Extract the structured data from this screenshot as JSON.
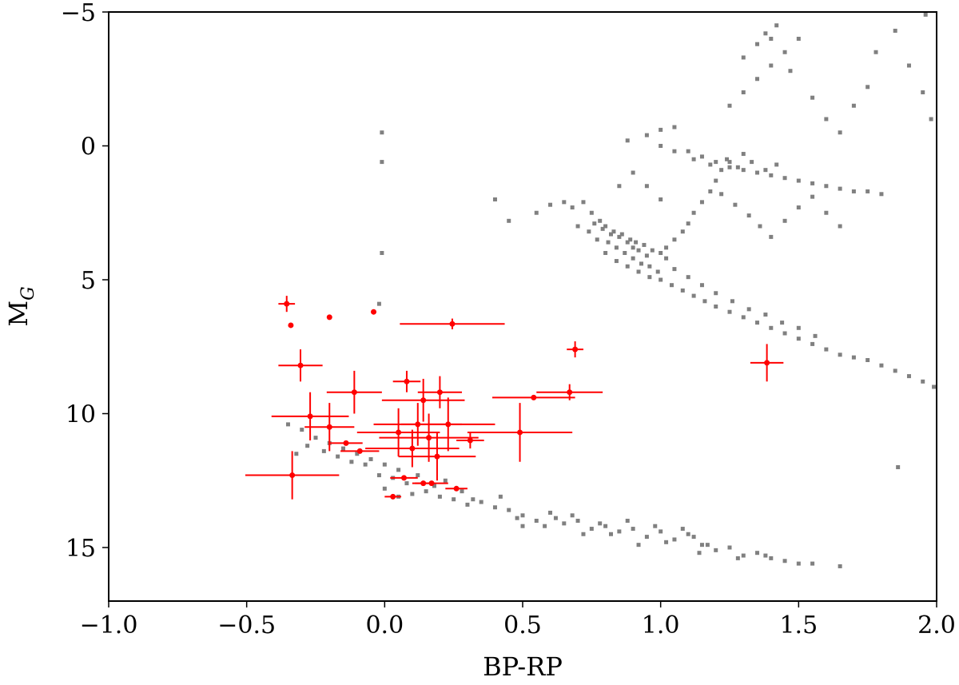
{
  "chart_data": {
    "type": "scatter",
    "title": "",
    "xlabel": "BP-RP",
    "ylabel_main": "M",
    "ylabel_sub": "G",
    "xlim": [
      -1.0,
      2.0
    ],
    "ylim": [
      17.0,
      -5.0
    ],
    "y_inverted": true,
    "grid": false,
    "legend": "none",
    "x_ticks": [
      -1.0,
      -0.5,
      0.0,
      0.5,
      1.0,
      1.5,
      2.0
    ],
    "x_tick_labels": [
      "−1.0",
      "−0.5",
      "0.0",
      "0.5",
      "1.0",
      "1.5",
      "2.0"
    ],
    "y_ticks": [
      -5,
      0,
      5,
      10,
      15
    ],
    "y_tick_labels": [
      "−5",
      "0",
      "5",
      "10",
      "15"
    ],
    "series": [
      {
        "color": "#808080",
        "marker": "small-square",
        "description_points": "field stars (main sequence and giant branch)",
        "points": [
          [
            0.72,
            2.1
          ],
          [
            0.75,
            2.5
          ],
          [
            0.78,
            2.8
          ],
          [
            0.8,
            3.0
          ],
          [
            0.82,
            3.3
          ],
          [
            0.85,
            3.4
          ],
          [
            0.88,
            3.6
          ],
          [
            0.9,
            3.8
          ],
          [
            0.92,
            3.9
          ],
          [
            0.95,
            4.1
          ],
          [
            0.7,
            3.0
          ],
          [
            0.74,
            3.2
          ],
          [
            0.77,
            3.5
          ],
          [
            0.81,
            3.6
          ],
          [
            0.84,
            3.8
          ],
          [
            0.87,
            4.0
          ],
          [
            0.9,
            4.2
          ],
          [
            0.93,
            4.4
          ],
          [
            0.96,
            4.5
          ],
          [
            0.99,
            4.7
          ],
          [
            0.76,
            2.9
          ],
          [
            0.79,
            3.1
          ],
          [
            0.83,
            3.2
          ],
          [
            0.86,
            3.3
          ],
          [
            0.89,
            3.5
          ],
          [
            0.91,
            3.6
          ],
          [
            0.94,
            3.7
          ],
          [
            0.97,
            3.9
          ],
          [
            1.0,
            4.0
          ],
          [
            1.02,
            4.2
          ],
          [
            0.8,
            4.0
          ],
          [
            0.84,
            4.3
          ],
          [
            0.88,
            4.5
          ],
          [
            0.92,
            4.7
          ],
          [
            0.96,
            4.9
          ],
          [
            1.0,
            5.0
          ],
          [
            1.04,
            5.2
          ],
          [
            1.08,
            5.4
          ],
          [
            1.12,
            5.6
          ],
          [
            1.16,
            5.8
          ],
          [
            1.2,
            6.0
          ],
          [
            1.25,
            6.2
          ],
          [
            1.3,
            6.4
          ],
          [
            1.35,
            6.6
          ],
          [
            1.4,
            6.8
          ],
          [
            1.45,
            7.0
          ],
          [
            1.5,
            7.2
          ],
          [
            1.55,
            7.4
          ],
          [
            1.6,
            7.6
          ],
          [
            1.65,
            7.8
          ],
          [
            1.7,
            7.9
          ],
          [
            1.75,
            8.0
          ],
          [
            1.8,
            8.2
          ],
          [
            1.85,
            8.4
          ],
          [
            1.9,
            8.6
          ],
          [
            1.95,
            8.8
          ],
          [
            1.99,
            9.0
          ],
          [
            1.05,
            4.6
          ],
          [
            1.1,
            4.9
          ],
          [
            1.15,
            5.2
          ],
          [
            1.2,
            5.5
          ],
          [
            1.26,
            5.8
          ],
          [
            1.32,
            6.1
          ],
          [
            1.38,
            6.3
          ],
          [
            1.44,
            6.6
          ],
          [
            1.5,
            6.8
          ],
          [
            1.56,
            7.1
          ],
          [
            1.02,
            3.8
          ],
          [
            1.05,
            3.5
          ],
          [
            1.08,
            3.2
          ],
          [
            1.1,
            2.9
          ],
          [
            1.12,
            2.5
          ],
          [
            1.15,
            2.1
          ],
          [
            1.18,
            1.7
          ],
          [
            1.2,
            1.3
          ],
          [
            1.22,
            0.9
          ],
          [
            1.25,
            0.6
          ],
          [
            1.1,
            0.2
          ],
          [
            1.15,
            0.4
          ],
          [
            1.2,
            0.6
          ],
          [
            1.25,
            0.8
          ],
          [
            1.3,
            0.9
          ],
          [
            1.35,
            1.0
          ],
          [
            1.4,
            1.1
          ],
          [
            1.45,
            1.2
          ],
          [
            1.5,
            1.3
          ],
          [
            1.55,
            1.4
          ],
          [
            1.6,
            1.5
          ],
          [
            1.65,
            1.6
          ],
          [
            1.7,
            1.7
          ],
          [
            1.75,
            1.7
          ],
          [
            1.8,
            1.8
          ],
          [
            1.0,
            0.0
          ],
          [
            1.05,
            0.2
          ],
          [
            1.12,
            0.5
          ],
          [
            1.18,
            0.7
          ],
          [
            1.24,
            0.5
          ],
          [
            1.3,
            0.3
          ],
          [
            1.28,
            0.8
          ],
          [
            1.33,
            0.6
          ],
          [
            1.38,
            0.9
          ],
          [
            1.42,
            0.7
          ],
          [
            1.22,
            1.8
          ],
          [
            1.27,
            2.2
          ],
          [
            1.32,
            2.6
          ],
          [
            1.36,
            3.0
          ],
          [
            1.4,
            3.4
          ],
          [
            1.45,
            2.8
          ],
          [
            1.5,
            2.3
          ],
          [
            1.55,
            1.9
          ],
          [
            1.6,
            2.5
          ],
          [
            1.65,
            3.0
          ],
          [
            1.25,
            -1.5
          ],
          [
            1.3,
            -2.0
          ],
          [
            1.35,
            -2.5
          ],
          [
            1.4,
            -3.0
          ],
          [
            1.45,
            -3.5
          ],
          [
            1.5,
            -4.0
          ],
          [
            1.47,
            -2.8
          ],
          [
            1.55,
            -1.8
          ],
          [
            1.6,
            -1.0
          ],
          [
            1.65,
            -0.5
          ],
          [
            1.7,
            -1.5
          ],
          [
            1.75,
            -2.2
          ],
          [
            1.78,
            -3.5
          ],
          [
            1.85,
            -4.3
          ],
          [
            1.9,
            -3.0
          ],
          [
            1.95,
            -2.0
          ],
          [
            1.98,
            -1.0
          ],
          [
            1.96,
            -4.9
          ],
          [
            1.35,
            -3.8
          ],
          [
            1.38,
            -4.2
          ],
          [
            1.42,
            -4.5
          ],
          [
            1.4,
            -4.0
          ],
          [
            1.3,
            -3.3
          ],
          [
            0.88,
            -0.2
          ],
          [
            0.95,
            -0.4
          ],
          [
            1.0,
            -0.6
          ],
          [
            1.05,
            -0.7
          ],
          [
            0.9,
            1.0
          ],
          [
            0.95,
            1.5
          ],
          [
            1.0,
            2.0
          ],
          [
            0.85,
            1.5
          ],
          [
            0.6,
            2.2
          ],
          [
            0.65,
            2.1
          ],
          [
            0.68,
            2.3
          ],
          [
            0.55,
            2.5
          ],
          [
            0.45,
            2.8
          ],
          [
            0.4,
            2.0
          ],
          [
            -0.01,
            -0.5
          ],
          [
            -0.01,
            0.6
          ],
          [
            -0.01,
            4.0
          ],
          [
            -0.02,
            5.9
          ],
          [
            -0.35,
            10.4
          ],
          [
            -0.3,
            10.6
          ],
          [
            -0.25,
            10.9
          ],
          [
            -0.2,
            11.1
          ],
          [
            -0.15,
            11.3
          ],
          [
            -0.1,
            11.5
          ],
          [
            -0.05,
            11.7
          ],
          [
            0.0,
            11.9
          ],
          [
            0.05,
            12.1
          ],
          [
            -0.32,
            11.5
          ],
          [
            -0.28,
            11.2
          ],
          [
            -0.22,
            11.4
          ],
          [
            -0.17,
            11.6
          ],
          [
            -0.12,
            11.8
          ],
          [
            -0.07,
            11.9
          ],
          [
            -0.02,
            12.3
          ],
          [
            0.03,
            12.4
          ],
          [
            0.08,
            12.6
          ],
          [
            0.1,
            13.0
          ],
          [
            0.15,
            12.9
          ],
          [
            0.2,
            13.1
          ],
          [
            0.25,
            13.2
          ],
          [
            0.3,
            13.4
          ],
          [
            0.35,
            13.3
          ],
          [
            0.4,
            13.5
          ],
          [
            0.45,
            13.6
          ],
          [
            0.5,
            13.8
          ],
          [
            0.55,
            14.0
          ],
          [
            0.6,
            13.7
          ],
          [
            0.65,
            14.1
          ],
          [
            0.7,
            14.0
          ],
          [
            0.75,
            14.3
          ],
          [
            0.8,
            14.2
          ],
          [
            0.85,
            14.4
          ],
          [
            0.9,
            14.3
          ],
          [
            0.95,
            14.6
          ],
          [
            1.0,
            14.4
          ],
          [
            1.05,
            14.7
          ],
          [
            1.1,
            14.5
          ],
          [
            1.15,
            14.9
          ],
          [
            1.2,
            15.1
          ],
          [
            1.25,
            15.0
          ],
          [
            1.3,
            15.3
          ],
          [
            1.35,
            15.2
          ],
          [
            1.4,
            15.4
          ],
          [
            1.45,
            15.5
          ],
          [
            1.5,
            15.6
          ],
          [
            1.55,
            15.6
          ],
          [
            0.0,
            12.8
          ],
          [
            0.05,
            13.1
          ],
          [
            0.12,
            12.3
          ],
          [
            0.18,
            12.7
          ],
          [
            0.22,
            12.5
          ],
          [
            0.28,
            12.9
          ],
          [
            0.32,
            13.2
          ],
          [
            0.42,
            13.1
          ],
          [
            0.48,
            13.9
          ],
          [
            0.58,
            14.2
          ],
          [
            0.62,
            13.9
          ],
          [
            0.68,
            13.8
          ],
          [
            0.72,
            14.5
          ],
          [
            0.78,
            14.1
          ],
          [
            0.82,
            14.5
          ],
          [
            0.88,
            14.0
          ],
          [
            0.92,
            14.9
          ],
          [
            0.98,
            14.2
          ],
          [
            1.02,
            14.8
          ],
          [
            1.08,
            14.3
          ],
          [
            1.12,
            14.6
          ],
          [
            1.14,
            15.2
          ],
          [
            1.17,
            14.9
          ],
          [
            1.28,
            15.4
          ],
          [
            1.38,
            15.3
          ],
          [
            1.65,
            15.7
          ],
          [
            1.86,
            12.0
          ],
          [
            0.5,
            14.2
          ]
        ]
      },
      {
        "color": "#ff0000",
        "marker": "dot-with-errorbars",
        "points": [
          {
            "x": -0.355,
            "y": 5.9,
            "xerr": 0.03,
            "yerr": 0.3
          },
          {
            "x": -0.34,
            "y": 6.7,
            "xerr": 0.0,
            "yerr": 0.0
          },
          {
            "x": -0.2,
            "y": 6.4,
            "xerr": 0.0,
            "yerr": 0.0
          },
          {
            "x": -0.04,
            "y": 6.2,
            "xerr": 0.0,
            "yerr": 0.0
          },
          {
            "x": 0.245,
            "y": 6.65,
            "xerr": 0.19,
            "yerr": 0.2
          },
          {
            "x": 0.69,
            "y": 7.6,
            "xerr": 0.03,
            "yerr": 0.3
          },
          {
            "x": -0.305,
            "y": 8.2,
            "xerr": 0.08,
            "yerr": 0.6
          },
          {
            "x": 1.385,
            "y": 8.1,
            "xerr": 0.06,
            "yerr": 0.7
          },
          {
            "x": 0.08,
            "y": 8.8,
            "xerr": 0.05,
            "yerr": 0.4
          },
          {
            "x": 0.2,
            "y": 9.2,
            "xerr": 0.08,
            "yerr": 0.6
          },
          {
            "x": -0.11,
            "y": 9.2,
            "xerr": 0.1,
            "yerr": 0.8
          },
          {
            "x": 0.67,
            "y": 9.2,
            "xerr": 0.12,
            "yerr": 0.3
          },
          {
            "x": 0.54,
            "y": 9.4,
            "xerr": 0.15,
            "yerr": 0.0
          },
          {
            "x": 0.14,
            "y": 9.5,
            "xerr": 0.15,
            "yerr": 0.8
          },
          {
            "x": -0.27,
            "y": 10.1,
            "xerr": 0.14,
            "yerr": 0.9
          },
          {
            "x": -0.2,
            "y": 10.5,
            "xerr": 0.09,
            "yerr": 0.9
          },
          {
            "x": 0.12,
            "y": 10.4,
            "xerr": 0.16,
            "yerr": 0.8
          },
          {
            "x": 0.23,
            "y": 10.4,
            "xerr": 0.17,
            "yerr": 1.0
          },
          {
            "x": 0.05,
            "y": 10.7,
            "xerr": 0.15,
            "yerr": 0.9
          },
          {
            "x": 0.49,
            "y": 10.7,
            "xerr": 0.19,
            "yerr": 1.1
          },
          {
            "x": 0.16,
            "y": 10.9,
            "xerr": 0.18,
            "yerr": 0.9
          },
          {
            "x": 0.31,
            "y": 11.0,
            "xerr": 0.05,
            "yerr": 0.3
          },
          {
            "x": -0.14,
            "y": 11.1,
            "xerr": 0.06,
            "yerr": 0.0
          },
          {
            "x": 0.1,
            "y": 11.3,
            "xerr": 0.17,
            "yerr": 0.7
          },
          {
            "x": -0.09,
            "y": 11.4,
            "xerr": 0.07,
            "yerr": 0.0
          },
          {
            "x": 0.19,
            "y": 11.6,
            "xerr": 0.14,
            "yerr": 0.9
          },
          {
            "x": -0.335,
            "y": 12.3,
            "xerr": 0.17,
            "yerr": 0.9
          },
          {
            "x": 0.07,
            "y": 12.4,
            "xerr": 0.05,
            "yerr": 0.0
          },
          {
            "x": 0.14,
            "y": 12.6,
            "xerr": 0.04,
            "yerr": 0.0
          },
          {
            "x": 0.17,
            "y": 12.6,
            "xerr": 0.06,
            "yerr": 0.0
          },
          {
            "x": 0.26,
            "y": 12.8,
            "xerr": 0.04,
            "yerr": 0.0
          },
          {
            "x": 0.03,
            "y": 13.1,
            "xerr": 0.03,
            "yerr": 0.0
          }
        ]
      }
    ]
  }
}
